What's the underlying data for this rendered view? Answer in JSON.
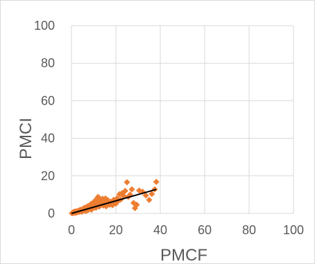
{
  "chart_data": {
    "type": "scatter",
    "title": "",
    "xlabel": "PMCF",
    "ylabel": "PMCI",
    "xlim": [
      0,
      100
    ],
    "ylim": [
      0,
      100
    ],
    "x_ticks": [
      0,
      20,
      40,
      60,
      80,
      100
    ],
    "y_ticks": [
      0,
      20,
      40,
      60,
      80,
      100
    ],
    "grid": true,
    "legend": "none",
    "marker": "diamond",
    "colors": {
      "points": "#ED7D31",
      "trendline": "#000000",
      "grid": "#D9D9D9",
      "text": "#595959"
    },
    "points": [
      [
        0.2,
        0.1
      ],
      [
        0.4,
        0.3
      ],
      [
        0.5,
        0.2
      ],
      [
        0.7,
        0.5
      ],
      [
        0.9,
        0.3
      ],
      [
        1.0,
        0.8
      ],
      [
        1.2,
        0.4
      ],
      [
        1.5,
        0.6
      ],
      [
        1.6,
        1.0
      ],
      [
        1.8,
        0.3
      ],
      [
        2.0,
        0.9
      ],
      [
        2.2,
        0.5
      ],
      [
        2.5,
        1.2
      ],
      [
        2.7,
        0.7
      ],
      [
        3.0,
        1.0
      ],
      [
        3.2,
        1.5
      ],
      [
        3.5,
        0.8
      ],
      [
        3.8,
        1.3
      ],
      [
        4.0,
        2.0
      ],
      [
        4.2,
        1.1
      ],
      [
        4.5,
        1.7
      ],
      [
        4.8,
        0.9
      ],
      [
        5.0,
        2.3
      ],
      [
        5.2,
        1.4
      ],
      [
        5.5,
        2.0
      ],
      [
        5.8,
        3.0
      ],
      [
        6.0,
        1.6
      ],
      [
        6.2,
        2.6
      ],
      [
        6.5,
        1.2
      ],
      [
        6.7,
        3.3
      ],
      [
        7.0,
        2.2
      ],
      [
        7.3,
        3.8
      ],
      [
        7.5,
        1.8
      ],
      [
        7.8,
        2.9
      ],
      [
        8.0,
        4.2
      ],
      [
        8.3,
        2.5
      ],
      [
        8.5,
        3.5
      ],
      [
        8.8,
        5.0
      ],
      [
        9.0,
        2.0
      ],
      [
        9.2,
        3.9
      ],
      [
        9.5,
        4.8
      ],
      [
        9.8,
        2.8
      ],
      [
        10.0,
        6.0
      ],
      [
        10.2,
        3.4
      ],
      [
        10.5,
        4.5
      ],
      [
        10.8,
        7.0
      ],
      [
        11.0,
        3.0
      ],
      [
        11.3,
        5.2
      ],
      [
        11.5,
        6.5
      ],
      [
        11.8,
        4.0
      ],
      [
        12.0,
        8.8
      ],
      [
        12.3,
        5.8
      ],
      [
        12.5,
        3.6
      ],
      [
        12.8,
        7.4
      ],
      [
        13.0,
        4.6
      ],
      [
        13.3,
        6.2
      ],
      [
        13.6,
        5.0
      ],
      [
        14.0,
        7.8
      ],
      [
        14.3,
        4.2
      ],
      [
        14.6,
        6.8
      ],
      [
        15.0,
        5.4
      ],
      [
        15.3,
        8.0
      ],
      [
        15.6,
        3.8
      ],
      [
        16.0,
        6.4
      ],
      [
        16.4,
        7.0
      ],
      [
        16.8,
        5.0
      ],
      [
        17.2,
        4.6
      ],
      [
        17.6,
        6.2
      ],
      [
        18.0,
        5.6
      ],
      [
        18.5,
        4.4
      ],
      [
        19.0,
        7.2
      ],
      [
        19.5,
        6.0
      ],
      [
        20.0,
        5.2
      ],
      [
        20.5,
        8.0
      ],
      [
        21.0,
        6.6
      ],
      [
        21.6,
        10.2
      ],
      [
        22.2,
        7.4
      ],
      [
        22.8,
        10.8
      ],
      [
        23.5,
        9.4
      ],
      [
        24.2,
        12.0
      ],
      [
        25.0,
        16.6
      ],
      [
        25.6,
        8.8
      ],
      [
        26.4,
        10.0
      ],
      [
        27.2,
        12.8
      ],
      [
        28.0,
        5.6
      ],
      [
        28.6,
        2.8
      ],
      [
        29.4,
        4.6
      ],
      [
        30.5,
        12.2
      ],
      [
        32.0,
        11.6
      ],
      [
        33.5,
        9.6
      ],
      [
        35.0,
        7.2
      ],
      [
        36.2,
        10.4
      ],
      [
        37.5,
        12.8
      ],
      [
        38.2,
        16.8
      ]
    ],
    "trendline": {
      "type": "linear",
      "x_start": 0,
      "x_end": 38.2,
      "y_start": 0,
      "y_end": 12.8
    }
  }
}
